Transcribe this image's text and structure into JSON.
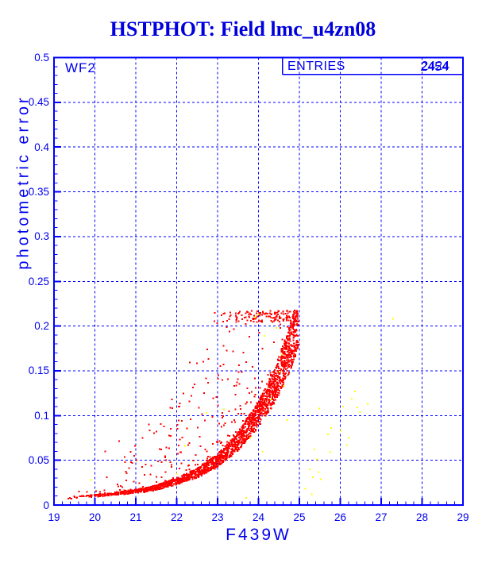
{
  "header": {
    "title": "HSTPHOT: Field lmc_u4zn08"
  },
  "plot": {
    "chip_label": "WF2",
    "entries_label": "ENTRIES",
    "entries_value_primary": "2424",
    "entries_value_secondary": "2454",
    "xlabel": "F439W",
    "ylabel": "photometric error"
  },
  "colors": {
    "background": "#FFFFFF",
    "title_blue": "#0000DD",
    "axis_blue": "#0000EE",
    "grid_blue": "#0000FF",
    "point_red": "#FF0000",
    "point_yellow": "#FFFF00"
  },
  "chart_data": {
    "type": "scatter",
    "title": "HSTPHOT: Field lmc_u4zn08",
    "xlabel": "F439W",
    "ylabel": "photometric error",
    "xlim": [
      19,
      29
    ],
    "ylim": [
      0,
      0.5
    ],
    "xticks": [
      19,
      20,
      21,
      22,
      23,
      24,
      25,
      26,
      27,
      28,
      29
    ],
    "yticks": [
      0,
      0.05,
      0.1,
      0.15,
      0.2,
      0.25,
      0.3,
      0.35,
      0.4,
      0.45,
      0.5
    ],
    "ytick_labels": [
      "0",
      "0.05",
      "0.1",
      "0.15",
      "0.2",
      "0.25",
      "0.3",
      "0.35",
      "0.4",
      "0.45",
      "0.5"
    ],
    "xtick_minor_step": 0.2,
    "ytick_minor_step": 0.01,
    "grid": true,
    "grid_style": "dashed",
    "series": [
      {
        "name": "stars-red",
        "color": "#FF0000",
        "marker": "square-2px",
        "n_points": 2424,
        "mag_range": [
          19.0,
          24.97
        ],
        "err_cap": 0.2175,
        "ridge_mag_err": [
          [
            19.0,
            0.006
          ],
          [
            19.5,
            0.008
          ],
          [
            20.0,
            0.01
          ],
          [
            20.5,
            0.012
          ],
          [
            21.0,
            0.0145
          ],
          [
            21.5,
            0.019
          ],
          [
            22.0,
            0.026
          ],
          [
            22.5,
            0.035
          ],
          [
            23.0,
            0.049
          ],
          [
            23.5,
            0.07
          ],
          [
            24.0,
            0.1
          ],
          [
            24.4,
            0.132
          ],
          [
            24.7,
            0.165
          ],
          [
            24.97,
            0.2
          ]
        ]
      },
      {
        "name": "flagged-yellow",
        "color": "#FFFF00",
        "marker": "square-2px",
        "n_points": 40,
        "points": [
          [
            19.9,
            0.028
          ],
          [
            22.0,
            0.035
          ],
          [
            22.2,
            0.066
          ],
          [
            22.73,
            0.103
          ],
          [
            23.16,
            0.107
          ],
          [
            23.7,
            0.008
          ],
          [
            23.91,
            0.21
          ],
          [
            24.0,
            0.213
          ],
          [
            24.44,
            0.198
          ],
          [
            24.15,
            0.189
          ],
          [
            24.57,
            0.168
          ],
          [
            24.51,
            0.149
          ],
          [
            24.3,
            0.118
          ],
          [
            24.7,
            0.095
          ],
          [
            23.8,
            0.075
          ],
          [
            24.1,
            0.06
          ],
          [
            25.15,
            0.018
          ],
          [
            25.3,
            0.012
          ],
          [
            25.25,
            0.04
          ],
          [
            25.33,
            0.031
          ],
          [
            25.37,
            0.062
          ],
          [
            25.43,
            0.051
          ],
          [
            25.47,
            0.037
          ],
          [
            25.52,
            0.029
          ],
          [
            25.49,
            0.108
          ],
          [
            25.7,
            0.079
          ],
          [
            25.76,
            0.059
          ],
          [
            25.78,
            0.086
          ],
          [
            26.01,
            0.083
          ],
          [
            26.07,
            0.11
          ],
          [
            26.16,
            0.067
          ],
          [
            26.2,
            0.075
          ],
          [
            26.28,
            0.119
          ],
          [
            26.36,
            0.127
          ],
          [
            26.42,
            0.109
          ],
          [
            26.49,
            0.104
          ],
          [
            26.67,
            0.113
          ],
          [
            26.98,
            0.174
          ],
          [
            27.29,
            0.208
          ],
          [
            24.62,
            0.133
          ]
        ]
      }
    ],
    "annotations": [
      {
        "text": "WF2",
        "position": "top-left-inside"
      },
      {
        "text": "ENTRIES 2424 / 2454 (overprinted stats box)",
        "position": "top-right-inside"
      }
    ]
  }
}
